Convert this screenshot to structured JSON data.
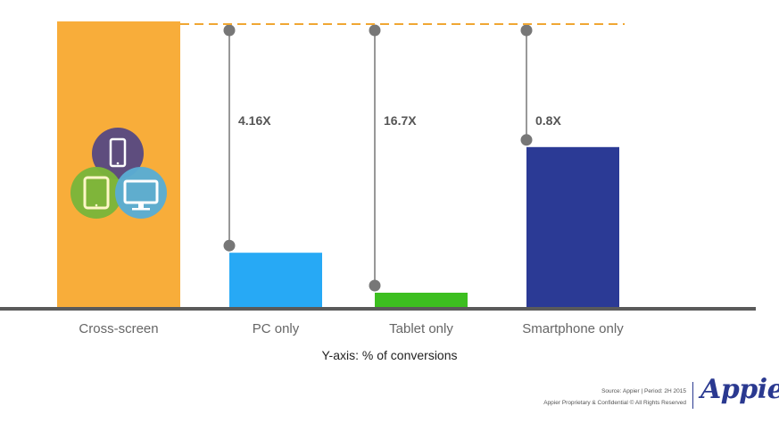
{
  "chart_data": {
    "type": "bar",
    "categories": [
      "Cross-screen",
      "PC only",
      "Tablet only",
      "Smartphone only"
    ],
    "values": [
      100,
      19,
      5,
      56
    ],
    "multipliers": [
      "",
      "4.16X",
      "16.7X",
      "0.8X"
    ],
    "colors": [
      "#f8ad3a",
      "#27a9f5",
      "#3dbf20",
      "#2b3a95"
    ],
    "xlabel": "Y-axis: % of conversions",
    "ylim": [
      0,
      100
    ],
    "grid": false,
    "legend": "none"
  },
  "colors": {
    "axis": "#5a5a5a",
    "connector": "#777777",
    "reference_line": "#f0a733",
    "icon_phone_bg": "#5e4d7e",
    "icon_tablet_bg": "#7bb53a",
    "icon_monitor_bg": "#5aacd3"
  },
  "icons": [
    "smartphone-icon",
    "tablet-icon",
    "monitor-icon"
  ],
  "footer": {
    "source": "Source: Appier | Period: 2H 2015",
    "rights": "Appier Proprietary & Confidential © All Rights Reserved",
    "brand": "Appier"
  }
}
